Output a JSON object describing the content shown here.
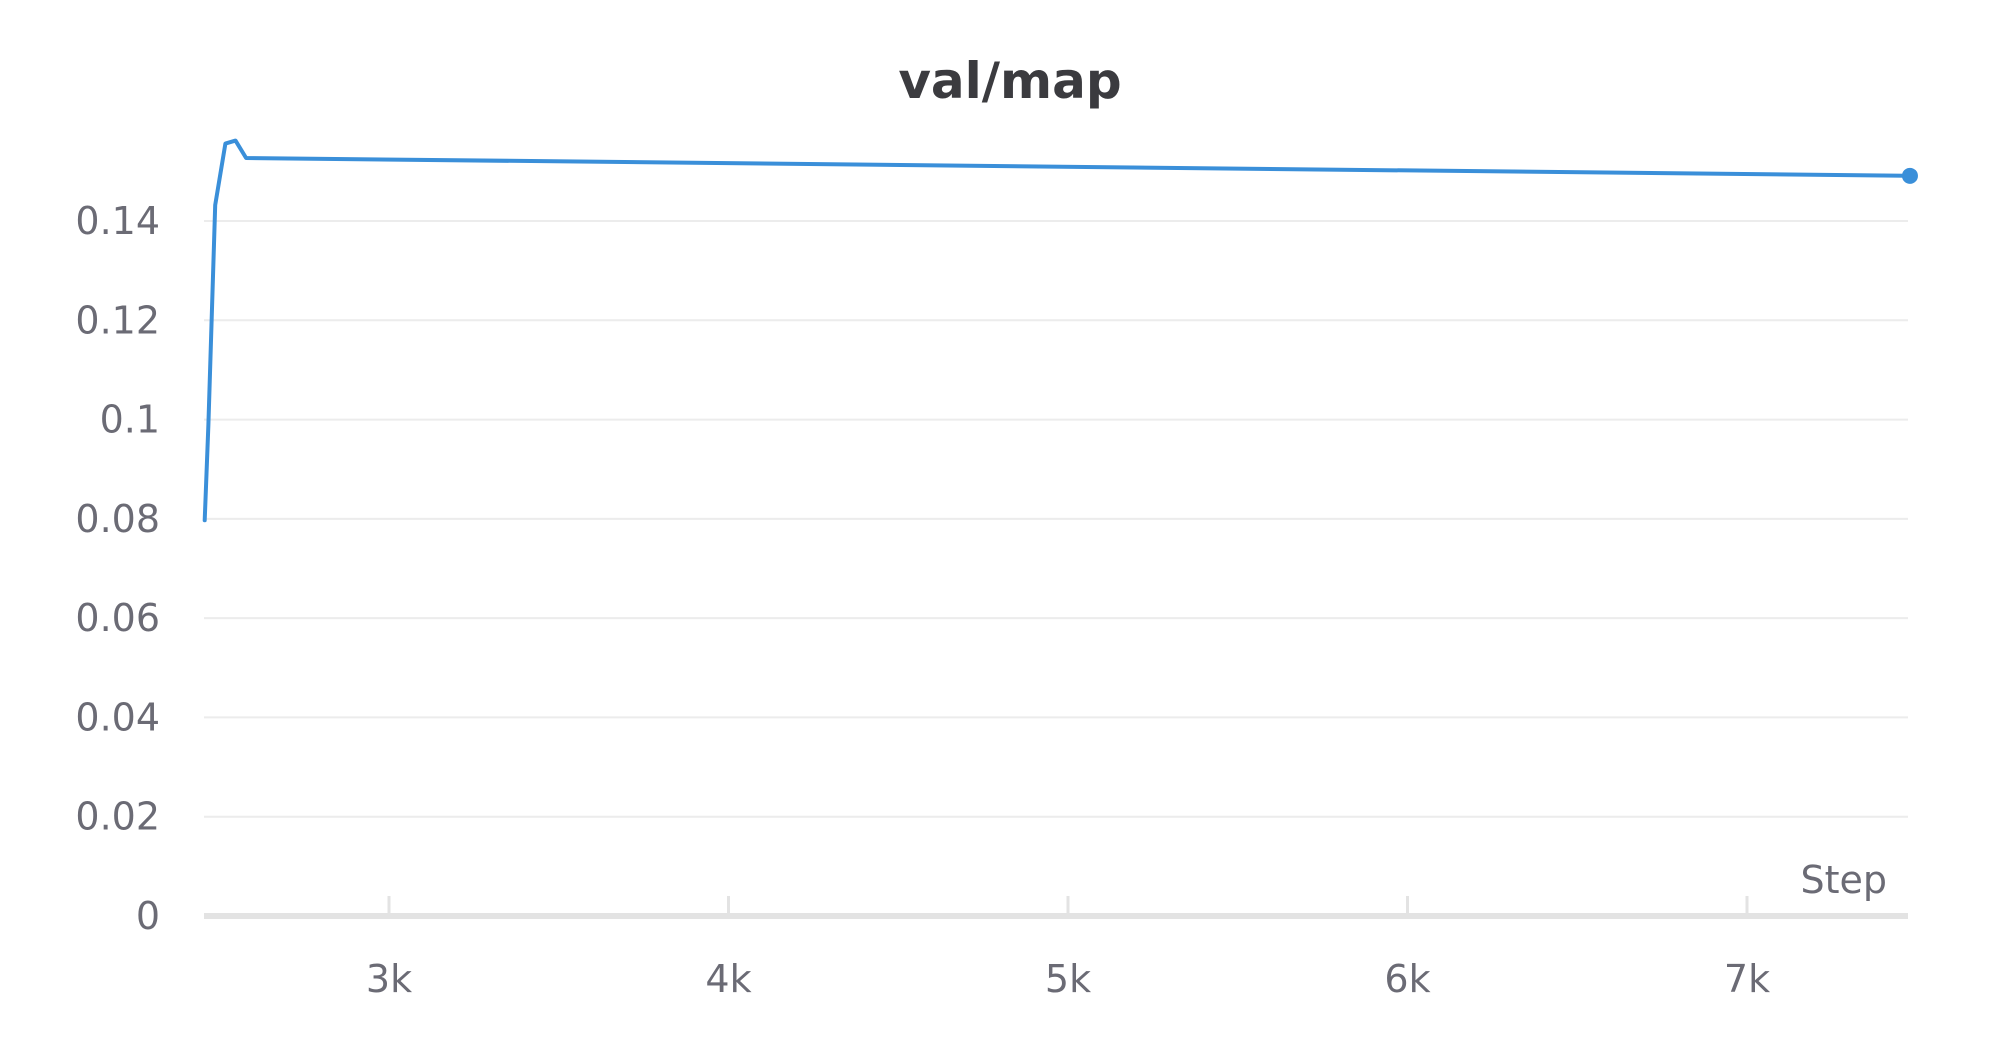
{
  "colors": {
    "series": "#3a8fd9"
  },
  "chart_data": {
    "type": "line",
    "title": "val/map",
    "xlabel": "Step",
    "ylabel": "",
    "xlim": [
      2457,
      7480
    ],
    "ylim": [
      0,
      0.158
    ],
    "x_ticks": [
      {
        "value": 3000,
        "label": "3k"
      },
      {
        "value": 4000,
        "label": "4k"
      },
      {
        "value": 5000,
        "label": "5k"
      },
      {
        "value": 6000,
        "label": "6k"
      },
      {
        "value": 7000,
        "label": "7k"
      }
    ],
    "y_ticks": [
      {
        "value": 0,
        "label": "0"
      },
      {
        "value": 0.02,
        "label": "0.02"
      },
      {
        "value": 0.04,
        "label": "0.04"
      },
      {
        "value": 0.06,
        "label": "0.06"
      },
      {
        "value": 0.08,
        "label": "0.08"
      },
      {
        "value": 0.1,
        "label": "0.1"
      },
      {
        "value": 0.12,
        "label": "0.12"
      },
      {
        "value": 0.14,
        "label": "0.14"
      }
    ],
    "grid": true,
    "legend": "none",
    "series": [
      {
        "color": "#3a8fd9",
        "points": [
          {
            "x": 2457,
            "y": 0.0797
          },
          {
            "x": 2468,
            "y": 0.099
          },
          {
            "x": 2488,
            "y": 0.1432
          },
          {
            "x": 2518,
            "y": 0.1556
          },
          {
            "x": 2548,
            "y": 0.1562
          },
          {
            "x": 2579,
            "y": 0.1527
          },
          {
            "x": 7480,
            "y": 0.1491
          }
        ],
        "end_marker": true
      }
    ]
  }
}
